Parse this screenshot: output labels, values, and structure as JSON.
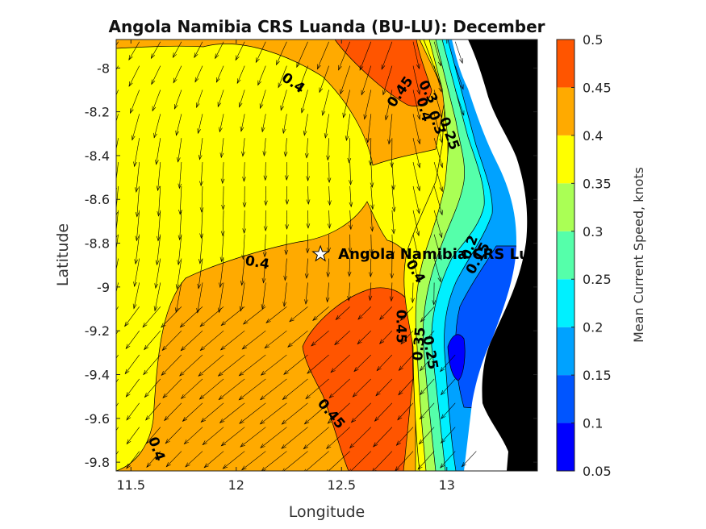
{
  "chart_data": {
    "type": "contour",
    "title": "Angola Namibia CRS Luanda (BU-LU): December",
    "xlabel": "Longitude",
    "ylabel": "Latitude",
    "xlim": [
      11.43,
      13.43
    ],
    "ylim": [
      -9.84,
      -7.87
    ],
    "xticks": [
      "11.5",
      "12",
      "12.5",
      "13"
    ],
    "xtick_values": [
      11.5,
      12,
      12.5,
      13
    ],
    "yticks": [
      "-8",
      "-8.2",
      "-8.4",
      "-8.6",
      "-8.8",
      "-9",
      "-9.2",
      "-9.4",
      "-9.6",
      "-9.8"
    ],
    "ytick_values": [
      -8,
      -8.2,
      -8.4,
      -8.6,
      -8.8,
      -9,
      -9.2,
      -9.4,
      -9.6,
      -9.8
    ],
    "colorbar": {
      "label": "Mean Current Speed, knots",
      "levels": [
        0.05,
        0.1,
        0.15,
        0.2,
        0.25,
        0.3,
        0.35,
        0.4,
        0.45,
        0.5
      ],
      "tick_labels": [
        "0.05",
        "0.1",
        "0.15",
        "0.2",
        "0.25",
        "0.3",
        "0.35",
        "0.4",
        "0.45",
        "0.5"
      ],
      "colors": [
        "#0000ff",
        "#0055ff",
        "#00a2ff",
        "#00f0ff",
        "#55ffaa",
        "#aaff55",
        "#ffff00",
        "#ffaa00",
        "#ff5500"
      ]
    },
    "contour_labels": [
      {
        "text": "0.4",
        "lon": 12.27,
        "lat": -8.07,
        "rot": 35
      },
      {
        "text": "0.45",
        "lon": 12.78,
        "lat": -8.11,
        "rot": -55
      },
      {
        "text": "0.3",
        "lon": 12.91,
        "lat": -8.11,
        "rot": 60
      },
      {
        "text": "0.4",
        "lon": 12.89,
        "lat": -8.19,
        "rot": 75
      },
      {
        "text": "0.3",
        "lon": 12.95,
        "lat": -8.25,
        "rot": 70
      },
      {
        "text": "0.25",
        "lon": 13.01,
        "lat": -8.3,
        "rot": 70
      },
      {
        "text": "0.4",
        "lon": 12.1,
        "lat": -8.89,
        "rot": 10
      },
      {
        "text": "0.4",
        "lon": 12.85,
        "lat": -8.93,
        "rot": 60
      },
      {
        "text": "0.2",
        "lon": 13.11,
        "lat": -8.82,
        "rot": -70
      },
      {
        "text": "0.15",
        "lon": 13.15,
        "lat": -8.87,
        "rot": -60
      },
      {
        "text": "0.45",
        "lon": 12.78,
        "lat": -9.18,
        "rot": 90
      },
      {
        "text": "0.35",
        "lon": 12.87,
        "lat": -9.26,
        "rot": -85
      },
      {
        "text": "0.25",
        "lon": 12.92,
        "lat": -9.3,
        "rot": 80
      },
      {
        "text": "0.45",
        "lon": 12.45,
        "lat": -9.58,
        "rot": 50
      },
      {
        "text": "0.4",
        "lon": 11.62,
        "lat": -9.74,
        "rot": 70
      }
    ],
    "station": {
      "label": "Angola Namibia CRS Luanda (BU-LU)",
      "lon": 12.4,
      "lat": -8.85
    },
    "land_color": "#000000",
    "grid": false
  }
}
